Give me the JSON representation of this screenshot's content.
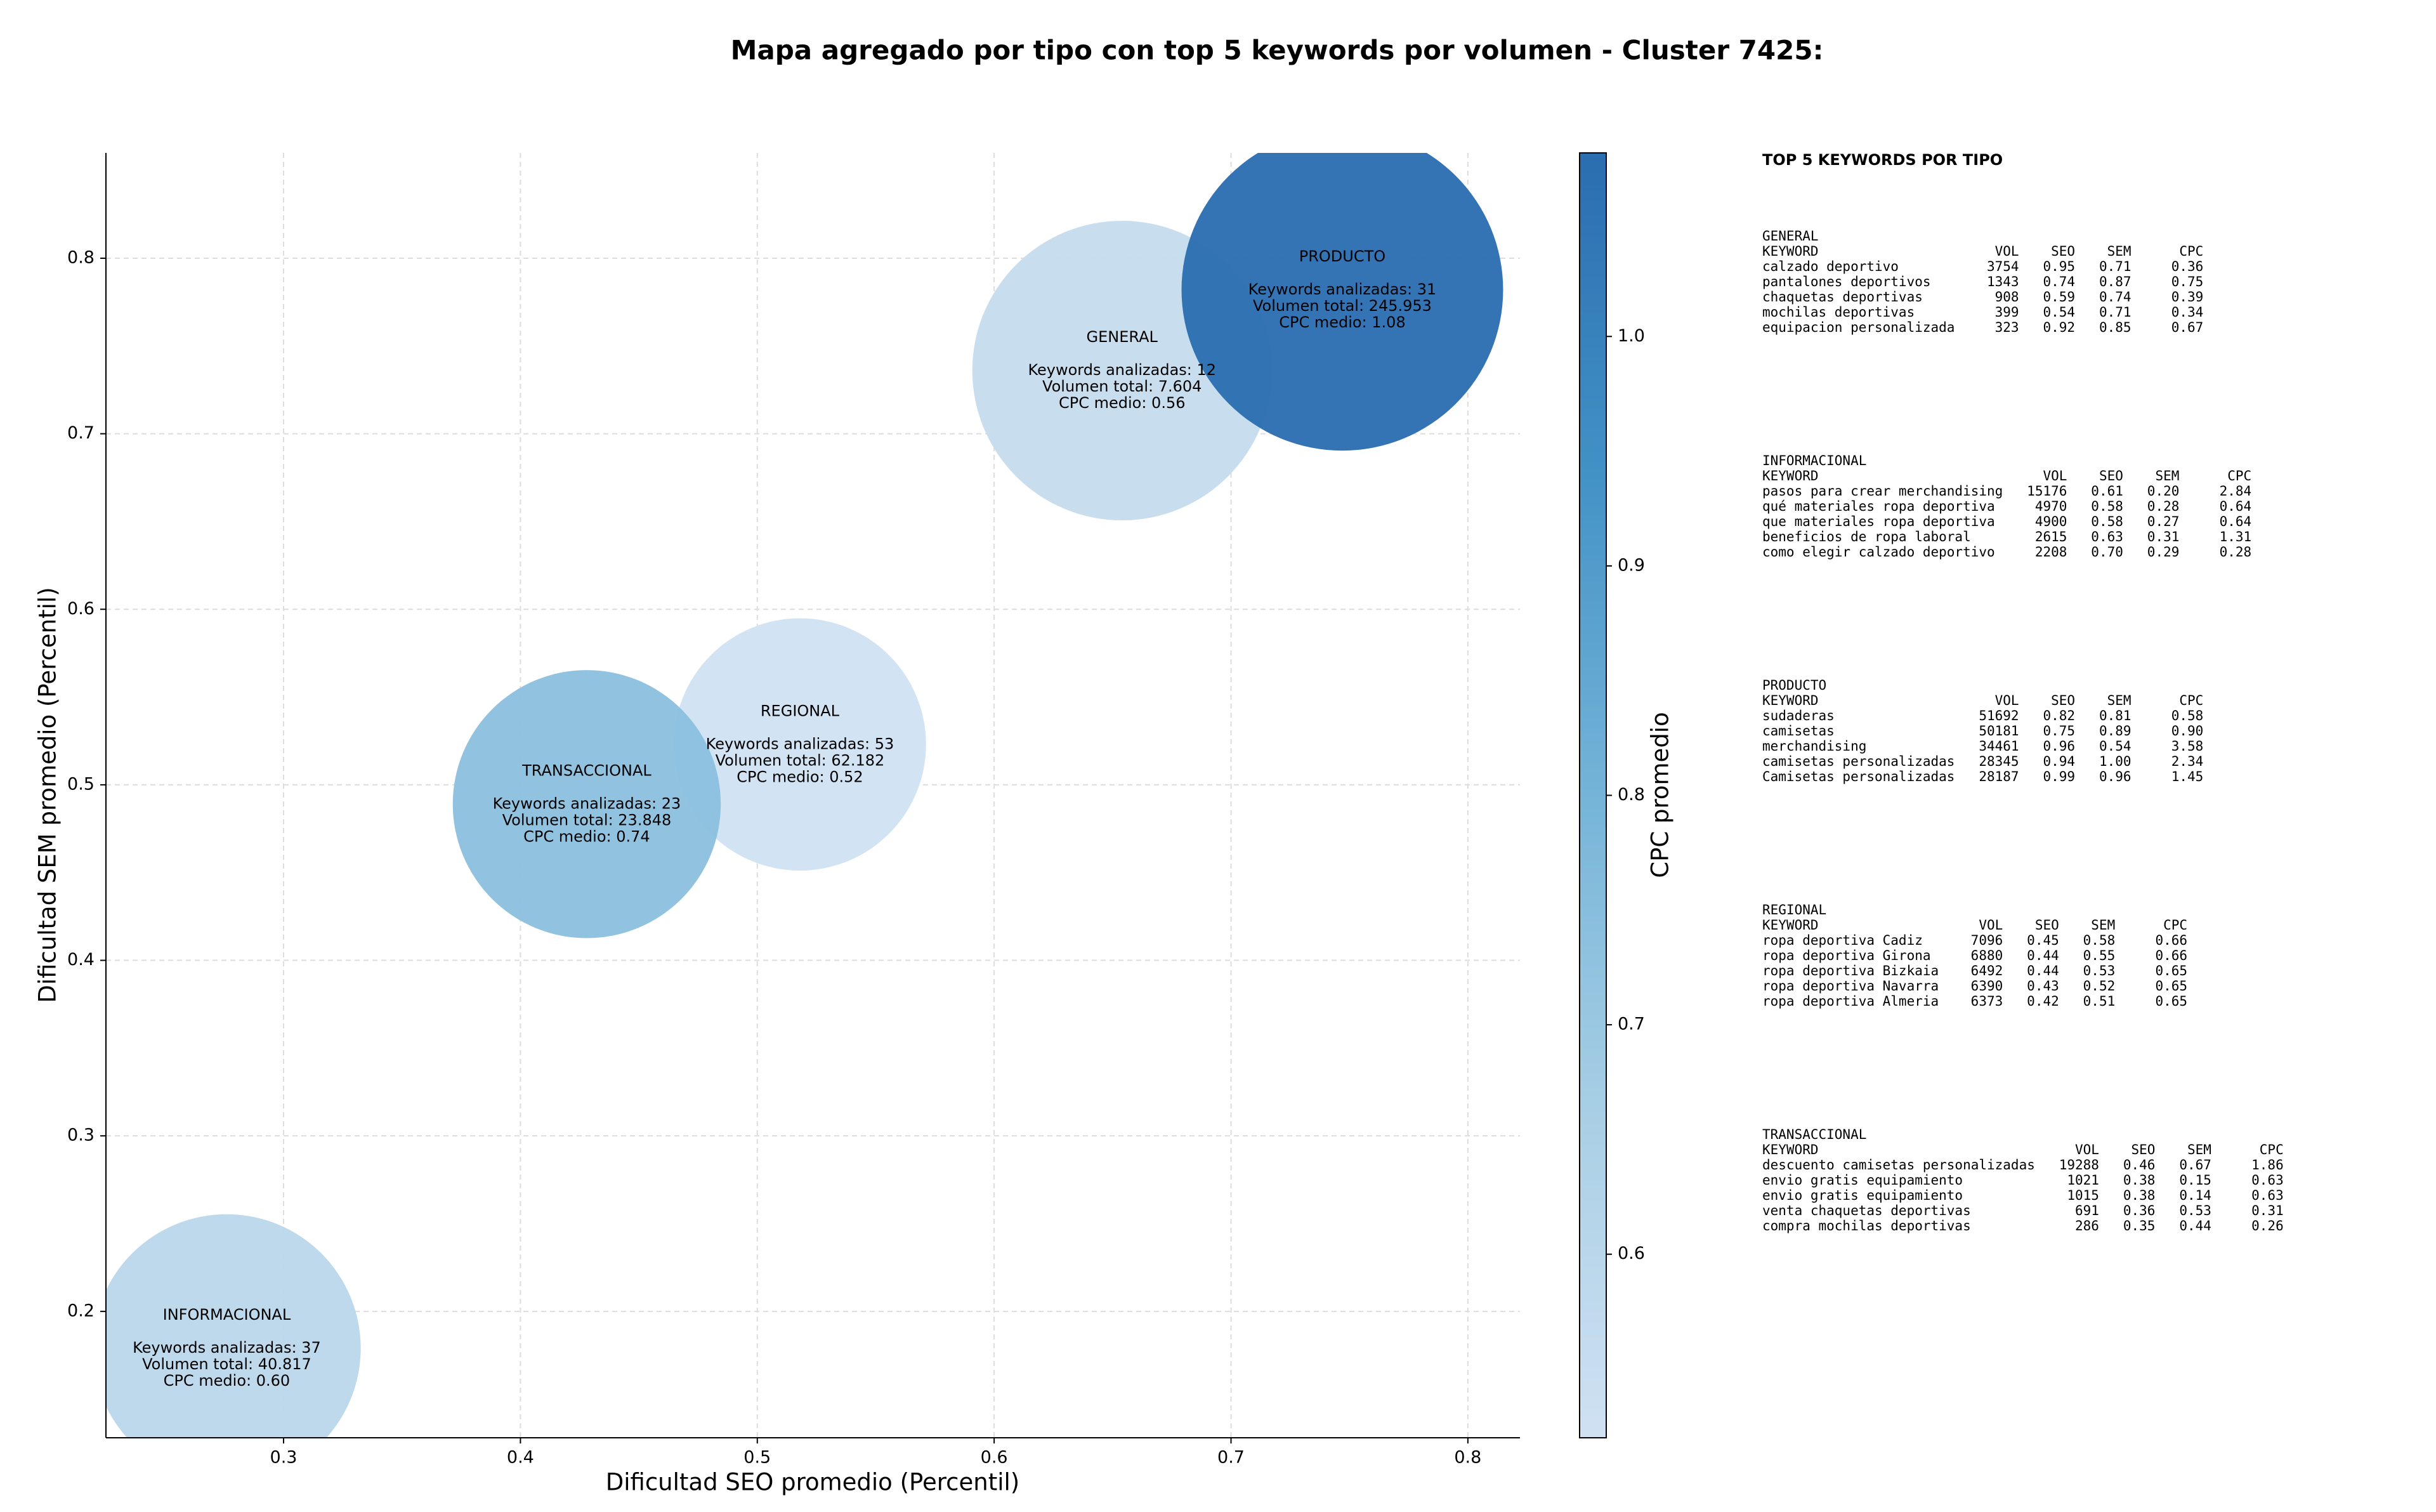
{
  "chart_data": {
    "type": "bubble",
    "title": "Mapa agregado por tipo con top 5 keywords por volumen - Cluster 7425:",
    "xlabel": "Dificultad SEO promedio (Percentil)",
    "ylabel": "Dificultad SEM promedio (Percentil)",
    "xlim": [
      0.225,
      0.822
    ],
    "ylim": [
      0.128,
      0.86
    ],
    "xticks": [
      0.3,
      0.4,
      0.5,
      0.6,
      0.7,
      0.8
    ],
    "yticks": [
      0.2,
      0.3,
      0.4,
      0.5,
      0.6,
      0.7,
      0.8
    ],
    "grid": true,
    "colorbar": {
      "label": "CPC promedio",
      "lim": [
        0.52,
        1.08
      ],
      "ticks": [
        0.6,
        0.7,
        0.8,
        0.9,
        {
          "value": 1,
          "label": "1.0"
        }
      ],
      "colormap": [
        "#d0e1f2",
        "#a9cfe5",
        "#75b4d8",
        "#4292c6",
        "#2a6db0"
      ]
    },
    "series": [
      {
        "categories": [
          "INFORMACIONAL",
          "REGIONAL",
          "TRANSACCIONAL",
          "GENERAL",
          "PRODUCTO"
        ],
        "x": [
          0.276,
          0.518,
          0.428,
          0.654,
          0.747
        ],
        "values": [
          0.179,
          0.523,
          0.489,
          0.736,
          0.782
        ],
        "sizes": [
          85,
          80,
          85,
          95,
          102
        ],
        "cpc": [
          0.6,
          0.52,
          0.74,
          0.56,
          1.08
        ],
        "annotations": [
          [
            "Keywords analizadas: 37",
            "Volumen total: 40.817",
            "CPC medio: 0.60"
          ],
          [
            "Keywords analizadas: 53",
            "Volumen total: 62.182",
            "CPC medio: 0.52"
          ],
          [
            "Keywords analizadas: 23",
            "Volumen total: 23.848",
            "CPC medio: 0.74"
          ],
          [
            "Keywords analizadas: 12",
            "Volumen total: 7.604",
            "CPC medio: 0.56"
          ],
          [
            "Keywords analizadas: 31",
            "Volumen total: 245.953",
            "CPC medio: 1.08"
          ]
        ]
      }
    ]
  },
  "panel": {
    "title": "TOP 5 KEYWORDS POR TIPO",
    "sections": [
      {
        "name": "GENERAL",
        "header": [
          "KEYWORD",
          "VOL",
          "SEO",
          "SEM",
          "CPC"
        ],
        "rows": [
          [
            "calzado deportivo",
            "3754",
            "0.95",
            "0.71",
            "0.36"
          ],
          [
            "pantalones deportivos",
            "1343",
            "0.74",
            "0.87",
            "0.75"
          ],
          [
            "chaquetas deportivas",
            "908",
            "0.59",
            "0.74",
            "0.39"
          ],
          [
            "mochilas deportivas",
            "399",
            "0.54",
            "0.71",
            "0.34"
          ],
          [
            "equipacion personalizada",
            "323",
            "0.92",
            "0.85",
            "0.67"
          ]
        ]
      },
      {
        "name": "INFORMACIONAL",
        "header": [
          "KEYWORD",
          "VOL",
          "SEO",
          "SEM",
          "CPC"
        ],
        "rows": [
          [
            "pasos para crear merchandising",
            "15176",
            "0.61",
            "0.20",
            "2.84"
          ],
          [
            "qué materiales ropa deportiva",
            "4970",
            "0.58",
            "0.28",
            "0.64"
          ],
          [
            "que materiales ropa deportiva",
            "4900",
            "0.58",
            "0.27",
            "0.64"
          ],
          [
            "beneficios de ropa laboral",
            "2615",
            "0.63",
            "0.31",
            "1.31"
          ],
          [
            "como elegir calzado deportivo",
            "2208",
            "0.70",
            "0.29",
            "0.28"
          ]
        ]
      },
      {
        "name": "PRODUCTO",
        "header": [
          "KEYWORD",
          "VOL",
          "SEO",
          "SEM",
          "CPC"
        ],
        "rows": [
          [
            "sudaderas",
            "51692",
            "0.82",
            "0.81",
            "0.58"
          ],
          [
            "camisetas",
            "50181",
            "0.75",
            "0.89",
            "0.90"
          ],
          [
            "merchandising",
            "34461",
            "0.96",
            "0.54",
            "3.58"
          ],
          [
            "camisetas personalizadas",
            "28345",
            "0.94",
            "1.00",
            "2.34"
          ],
          [
            "Camisetas personalizadas",
            "28187",
            "0.99",
            "0.96",
            "1.45"
          ]
        ]
      },
      {
        "name": "REGIONAL",
        "header": [
          "KEYWORD",
          "VOL",
          "SEO",
          "SEM",
          "CPC"
        ],
        "rows": [
          [
            "ropa deportiva Cadiz",
            "7096",
            "0.45",
            "0.58",
            "0.66"
          ],
          [
            "ropa deportiva Girona",
            "6880",
            "0.44",
            "0.55",
            "0.66"
          ],
          [
            "ropa deportiva Bizkaia",
            "6492",
            "0.44",
            "0.53",
            "0.65"
          ],
          [
            "ropa deportiva Navarra",
            "6390",
            "0.43",
            "0.52",
            "0.65"
          ],
          [
            "ropa deportiva Almeria",
            "6373",
            "0.42",
            "0.51",
            "0.65"
          ]
        ]
      },
      {
        "name": "TRANSACCIONAL",
        "header": [
          "KEYWORD",
          "VOL",
          "SEO",
          "SEM",
          "CPC"
        ],
        "rows": [
          [
            "descuento camisetas personalizadas",
            "19288",
            "0.46",
            "0.67",
            "1.86"
          ],
          [
            "envio gratis equipamiento",
            "1021",
            "0.38",
            "0.15",
            "0.63"
          ],
          [
            "envio gratis equipamiento",
            "1015",
            "0.38",
            "0.14",
            "0.63"
          ],
          [
            "venta chaquetas deportivas",
            "691",
            "0.36",
            "0.53",
            "0.31"
          ],
          [
            "compra mochilas deportivas",
            "286",
            "0.35",
            "0.44",
            "0.26"
          ]
        ]
      }
    ]
  }
}
